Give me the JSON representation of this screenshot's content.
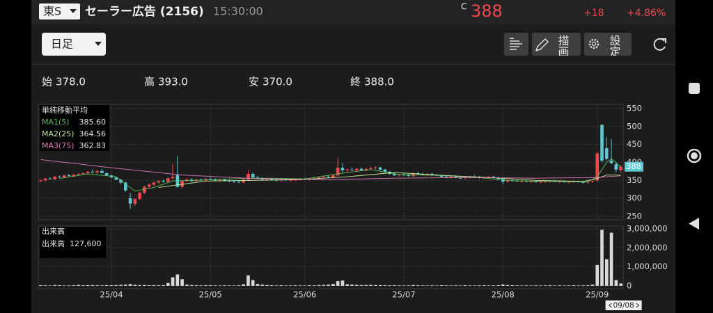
{
  "header": {
    "market": "東S",
    "name": "セーラー広告 (2156)",
    "time": "15:30:00",
    "price_prefix": "C",
    "price": "388",
    "change": "+18",
    "change_pct": "+4.86%"
  },
  "toolbar": {
    "period": "日足",
    "draw": "描画",
    "settings": "設定"
  },
  "ohlc_summary": [
    {
      "label": "始",
      "value": "378.0"
    },
    {
      "label": "高",
      "value": "393.0"
    },
    {
      "label": "安",
      "value": "370.0"
    },
    {
      "label": "終",
      "value": "388.0"
    }
  ],
  "chart_data": [
    {
      "type": "candlestick",
      "legend_title": "単純移動平均",
      "up_color": "#f0474f",
      "down_color": "#5cc8d2",
      "grid": true,
      "ylim": [
        240,
        562
      ],
      "yticks": [
        250,
        300,
        350,
        400,
        450,
        500,
        550
      ],
      "ohlc": [
        [
          348,
          352,
          345,
          350
        ],
        [
          350,
          356,
          348,
          355
        ],
        [
          355,
          358,
          352,
          353
        ],
        [
          353,
          362,
          352,
          360
        ],
        [
          360,
          363,
          357,
          358
        ],
        [
          358,
          365,
          356,
          364
        ],
        [
          364,
          368,
          360,
          362
        ],
        [
          362,
          368,
          360,
          366
        ],
        [
          366,
          370,
          364,
          368
        ],
        [
          368,
          372,
          365,
          370
        ],
        [
          370,
          376,
          368,
          374
        ],
        [
          374,
          380,
          370,
          372
        ],
        [
          372,
          378,
          368,
          376
        ],
        [
          376,
          382,
          372,
          370
        ],
        [
          370,
          372,
          362,
          364
        ],
        [
          364,
          366,
          356,
          358
        ],
        [
          358,
          360,
          350,
          352
        ],
        [
          352,
          354,
          340,
          344
        ],
        [
          344,
          346,
          318,
          322
        ],
        [
          300,
          315,
          270,
          285
        ],
        [
          285,
          300,
          278,
          298
        ],
        [
          298,
          318,
          295,
          315
        ],
        [
          315,
          335,
          312,
          332
        ],
        [
          332,
          342,
          328,
          338
        ],
        [
          338,
          346,
          334,
          344
        ],
        [
          344,
          350,
          340,
          348
        ],
        [
          348,
          352,
          344,
          346
        ],
        [
          346,
          358,
          344,
          356
        ],
        [
          356,
          395,
          352,
          360
        ],
        [
          365,
          418,
          330,
          332
        ],
        [
          332,
          350,
          328,
          348
        ],
        [
          348,
          356,
          345,
          352
        ],
        [
          352,
          356,
          346,
          348
        ],
        [
          348,
          354,
          345,
          352
        ],
        [
          352,
          355,
          348,
          350
        ],
        [
          350,
          356,
          348,
          354
        ],
        [
          354,
          358,
          350,
          352
        ],
        [
          352,
          356,
          348,
          350
        ],
        [
          350,
          354,
          346,
          352
        ],
        [
          352,
          355,
          347,
          349
        ],
        [
          349,
          352,
          345,
          347
        ],
        [
          347,
          350,
          343,
          346
        ],
        [
          346,
          349,
          342,
          344
        ],
        [
          344,
          355,
          342,
          352
        ],
        [
          352,
          378,
          350,
          368
        ],
        [
          368,
          372,
          356,
          358
        ],
        [
          358,
          362,
          352,
          355
        ],
        [
          355,
          358,
          350,
          352
        ],
        [
          352,
          356,
          349,
          354
        ],
        [
          354,
          357,
          350,
          351
        ],
        [
          351,
          354,
          348,
          350
        ],
        [
          350,
          353,
          347,
          352
        ],
        [
          352,
          355,
          349,
          350
        ],
        [
          350,
          353,
          347,
          351
        ],
        [
          351,
          354,
          348,
          352
        ],
        [
          352,
          356,
          350,
          354
        ],
        [
          354,
          357,
          351,
          352
        ],
        [
          352,
          356,
          350,
          355
        ],
        [
          355,
          358,
          352,
          354
        ],
        [
          354,
          360,
          352,
          358
        ],
        [
          358,
          362,
          355,
          360
        ],
        [
          360,
          364,
          356,
          358
        ],
        [
          358,
          366,
          356,
          364
        ],
        [
          364,
          412,
          362,
          385
        ],
        [
          385,
          398,
          372,
          378
        ],
        [
          378,
          384,
          372,
          380
        ],
        [
          380,
          386,
          376,
          378
        ],
        [
          378,
          384,
          374,
          382
        ],
        [
          382,
          386,
          376,
          378
        ],
        [
          378,
          384,
          375,
          382
        ],
        [
          382,
          388,
          378,
          384
        ],
        [
          384,
          390,
          380,
          386
        ],
        [
          386,
          388,
          378,
          380
        ],
        [
          380,
          382,
          372,
          374
        ],
        [
          374,
          376,
          366,
          368
        ],
        [
          368,
          370,
          362,
          364
        ],
        [
          364,
          368,
          360,
          366
        ],
        [
          366,
          370,
          362,
          364
        ],
        [
          364,
          368,
          360,
          362
        ],
        [
          362,
          372,
          360,
          370
        ],
        [
          370,
          374,
          366,
          368
        ],
        [
          368,
          372,
          364,
          366
        ],
        [
          366,
          370,
          363,
          368
        ],
        [
          368,
          371,
          364,
          365
        ],
        [
          365,
          368,
          361,
          363
        ],
        [
          363,
          366,
          358,
          360
        ],
        [
          360,
          363,
          356,
          358
        ],
        [
          358,
          362,
          355,
          360
        ],
        [
          360,
          363,
          356,
          357
        ],
        [
          357,
          360,
          354,
          356
        ],
        [
          356,
          360,
          353,
          358
        ],
        [
          358,
          362,
          355,
          360
        ],
        [
          360,
          364,
          357,
          359
        ],
        [
          359,
          362,
          355,
          357
        ],
        [
          357,
          360,
          354,
          358
        ],
        [
          358,
          362,
          356,
          360
        ],
        [
          360,
          363,
          356,
          357
        ],
        [
          357,
          360,
          352,
          354
        ],
        [
          354,
          356,
          340,
          346
        ],
        [
          346,
          352,
          344,
          350
        ],
        [
          350,
          353,
          347,
          349
        ],
        [
          349,
          352,
          345,
          347
        ],
        [
          347,
          350,
          344,
          348
        ],
        [
          348,
          351,
          345,
          346
        ],
        [
          346,
          349,
          343,
          347
        ],
        [
          347,
          350,
          344,
          345
        ],
        [
          345,
          348,
          342,
          346
        ],
        [
          346,
          349,
          343,
          347
        ],
        [
          347,
          350,
          344,
          348
        ],
        [
          348,
          351,
          345,
          346
        ],
        [
          346,
          349,
          343,
          347
        ],
        [
          347,
          350,
          344,
          345
        ],
        [
          345,
          348,
          342,
          346
        ],
        [
          346,
          349,
          343,
          347
        ],
        [
          347,
          349,
          344,
          345
        ],
        [
          345,
          348,
          342,
          344
        ],
        [
          344,
          347,
          341,
          346
        ],
        [
          346,
          350,
          343,
          348
        ],
        [
          350,
          430,
          345,
          425
        ],
        [
          505,
          505,
          400,
          405
        ],
        [
          440,
          470,
          405,
          410
        ],
        [
          405,
          465,
          395,
          398
        ],
        [
          395,
          400,
          372,
          380
        ],
        [
          378,
          393,
          370,
          388
        ]
      ],
      "series": [
        {
          "name": "MA1(5)",
          "color": "#5cbf5f",
          "legend_value": "385.60",
          "x": [
            4,
            10,
            16,
            20,
            24,
            28,
            32,
            36,
            44,
            48,
            56,
            64,
            70,
            76,
            84,
            92,
            100,
            108,
            116,
            118,
            120,
            121,
            122,
            123
          ],
          "values": [
            355,
            368,
            360,
            320,
            330,
            348,
            350,
            352,
            356,
            356,
            354,
            370,
            380,
            366,
            364,
            359,
            349,
            347,
            346,
            360,
            400,
            410,
            400,
            385.6
          ]
        },
        {
          "name": "MA2(25)",
          "color": "#c6e89a",
          "legend_value": "364.56",
          "x": [
            25,
            35,
            45,
            55,
            65,
            75,
            85,
            95,
            105,
            115,
            118,
            120,
            123
          ],
          "values": [
            330,
            348,
            350,
            352,
            360,
            372,
            364,
            358,
            350,
            347,
            355,
            365,
            364.56
          ]
        },
        {
          "name": "MA3(75)",
          "color": "#e37ab9",
          "legend_value": "362.83",
          "x": [
            0,
            15,
            30,
            45,
            60,
            75,
            90,
            105,
            118,
            123
          ],
          "values": [
            408,
            385,
            365,
            355,
            352,
            356,
            358,
            356,
            358,
            362.83
          ]
        }
      ]
    },
    {
      "type": "bar",
      "title": "出来高",
      "legend_label": "出来高",
      "legend_value": "127,600",
      "color": "#d9d9d9",
      "grid": true,
      "cursor_date": "09/08",
      "ylim": [
        -150000,
        3150000
      ],
      "yticks": [
        0,
        {
          "value": 1000000,
          "label": "1,000,000"
        },
        {
          "value": 2000000,
          "label": "2,000,000"
        },
        {
          "value": 3000000,
          "label": "3,000,000"
        }
      ],
      "categories": [
        null,
        null,
        null,
        null,
        null,
        null,
        null,
        null,
        null,
        null,
        null,
        null,
        null,
        null,
        null,
        "25/04",
        null,
        null,
        null,
        null,
        null,
        null,
        null,
        null,
        null,
        null,
        null,
        null,
        null,
        null,
        null,
        null,
        null,
        null,
        null,
        null,
        "25/05",
        null,
        null,
        null,
        null,
        null,
        null,
        null,
        null,
        null,
        null,
        null,
        null,
        null,
        null,
        null,
        null,
        null,
        null,
        null,
        "25/06",
        null,
        null,
        null,
        null,
        null,
        null,
        null,
        null,
        null,
        null,
        null,
        null,
        null,
        null,
        null,
        null,
        null,
        null,
        null,
        null,
        "25/07",
        null,
        null,
        null,
        null,
        null,
        null,
        null,
        null,
        null,
        null,
        null,
        null,
        null,
        null,
        null,
        null,
        null,
        null,
        null,
        null,
        "25/08",
        null,
        null,
        null,
        null,
        null,
        null,
        null,
        null,
        null,
        null,
        null,
        null,
        null,
        null,
        null,
        null,
        null,
        null,
        null,
        "25/09",
        null,
        null,
        null,
        null,
        null
      ],
      "values": [
        30000,
        25000,
        20000,
        40000,
        30000,
        20000,
        25000,
        30000,
        45000,
        30000,
        35000,
        40000,
        30000,
        25000,
        35000,
        30000,
        40000,
        50000,
        60000,
        90000,
        50000,
        40000,
        45000,
        30000,
        35000,
        30000,
        40000,
        150000,
        450000,
        600000,
        350000,
        60000,
        40000,
        30000,
        25000,
        30000,
        30000,
        25000,
        20000,
        30000,
        25000,
        20000,
        30000,
        80000,
        550000,
        300000,
        100000,
        60000,
        40000,
        30000,
        25000,
        30000,
        20000,
        25000,
        30000,
        25000,
        20000,
        30000,
        25000,
        40000,
        50000,
        60000,
        100000,
        250000,
        280000,
        80000,
        60000,
        50000,
        40000,
        45000,
        50000,
        40000,
        35000,
        30000,
        25000,
        30000,
        25000,
        20000,
        25000,
        40000,
        30000,
        25000,
        20000,
        25000,
        20000,
        30000,
        25000,
        20000,
        25000,
        20000,
        30000,
        25000,
        20000,
        25000,
        30000,
        20000,
        25000,
        30000,
        70000,
        40000,
        30000,
        25000,
        20000,
        25000,
        20000,
        25000,
        20000,
        25000,
        30000,
        20000,
        25000,
        20000,
        25000,
        30000,
        20000,
        25000,
        30000,
        60000,
        1100000,
        2950000,
        1400000,
        2800000,
        300000,
        127600
      ]
    }
  ]
}
